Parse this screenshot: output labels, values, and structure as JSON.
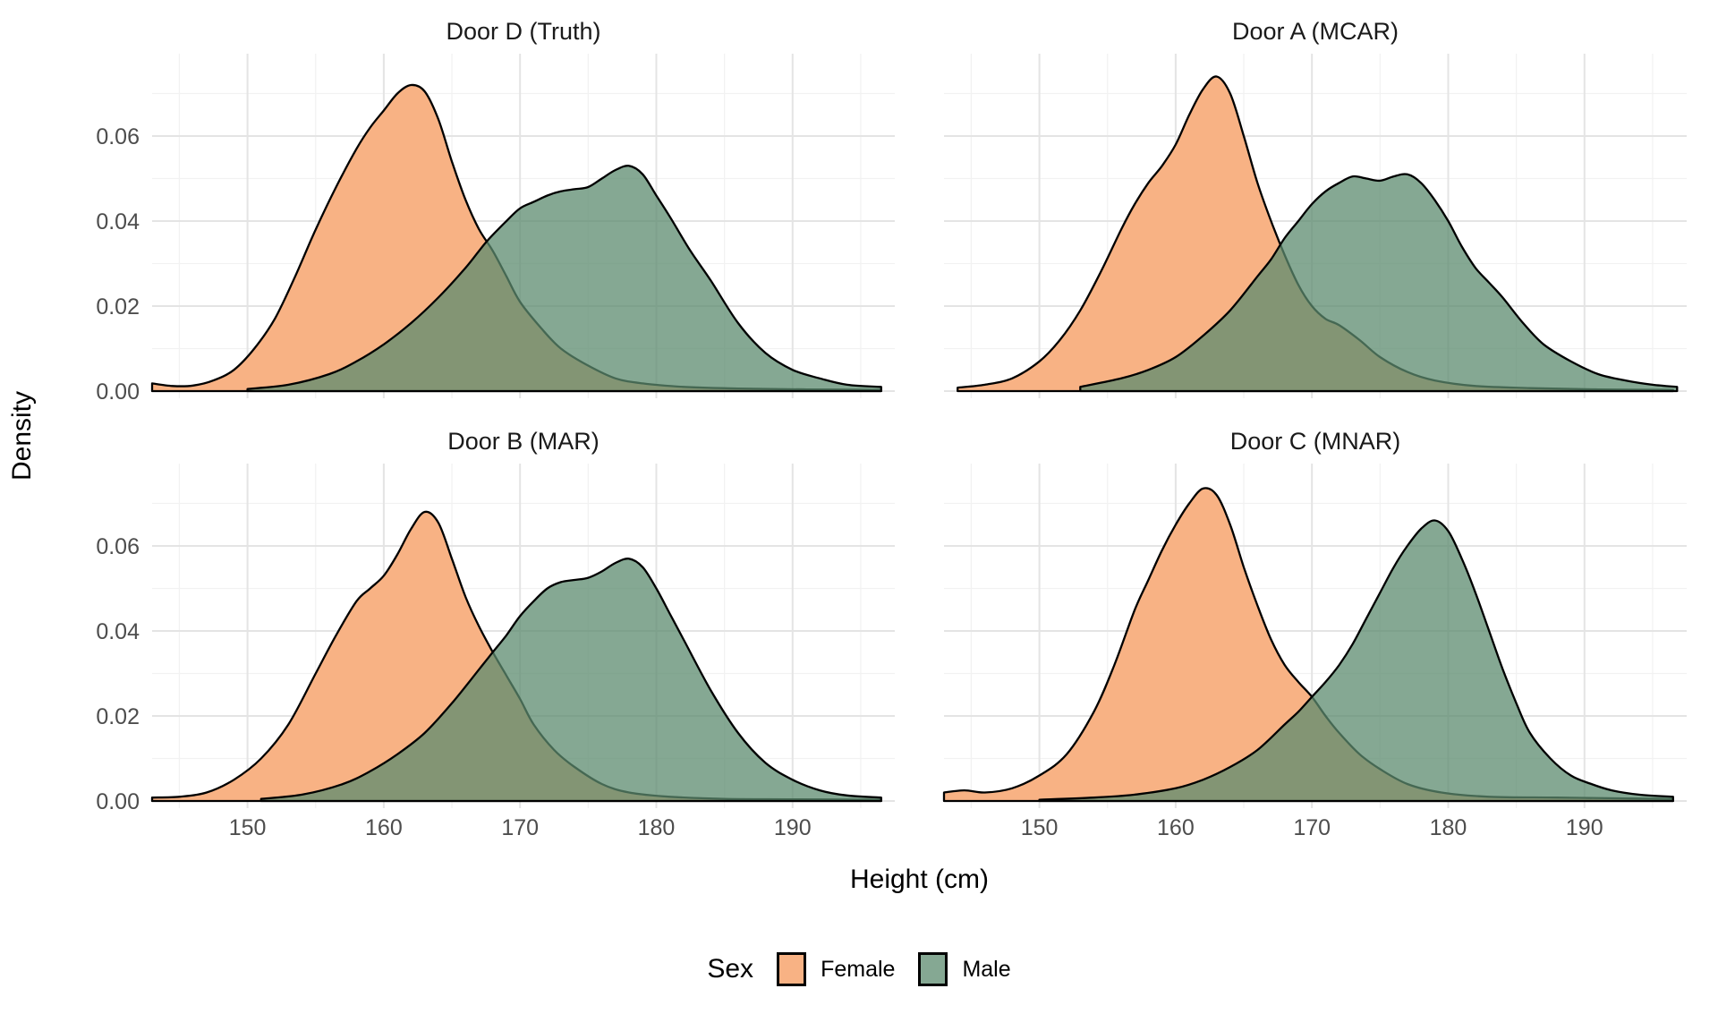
{
  "figure": {
    "y_axis_label": "Density",
    "x_axis_label": "Height (cm)",
    "legend": {
      "title": "Sex",
      "items": [
        {
          "label": "Female",
          "color": "#F8B284"
        },
        {
          "label": "Male",
          "color": "#85A893"
        }
      ]
    },
    "colors": {
      "female_fill": "#F8B284",
      "male_fill": "#5C8B6F",
      "male_fill_opacity": 0.75,
      "male_legend": "#85A893",
      "outline": "#000000",
      "grid_major": "#E4E4E4",
      "grid_minor": "#F2F2F2",
      "tick_label": "#4D4D4D"
    },
    "x_tick_labels": [
      "150",
      "160",
      "170",
      "180",
      "190"
    ],
    "y_tick_labels": [
      "0.00",
      "0.02",
      "0.04",
      "0.06"
    ]
  },
  "chart_data": [
    {
      "type": "area",
      "title": "Door D (Truth)",
      "xlabel": "Height (cm)",
      "ylabel": "Density",
      "xlim": [
        143,
        197.5
      ],
      "ylim": [
        0,
        0.0794
      ],
      "x_ticks": [
        150,
        160,
        170,
        180,
        190
      ],
      "y_ticks": [
        0,
        0.02,
        0.04,
        0.06
      ],
      "legend_position": "bottom",
      "grid": true,
      "series": [
        {
          "name": "Female",
          "x": [
            143,
            144.5,
            146,
            147.5,
            149,
            150.5,
            152,
            153.5,
            155,
            156.5,
            158,
            159,
            160,
            161,
            162,
            163,
            164,
            165,
            166,
            167,
            168,
            169,
            170,
            171.5,
            173,
            175,
            177,
            179,
            182,
            186,
            191,
            196.5
          ],
          "y": [
            0.0018,
            0.0012,
            0.0013,
            0.0025,
            0.005,
            0.01,
            0.017,
            0.027,
            0.038,
            0.048,
            0.057,
            0.062,
            0.066,
            0.07,
            0.072,
            0.0705,
            0.064,
            0.054,
            0.045,
            0.038,
            0.033,
            0.027,
            0.021,
            0.015,
            0.01,
            0.006,
            0.003,
            0.0018,
            0.001,
            0.0006,
            0.0004,
            0.0003
          ]
        },
        {
          "name": "Male",
          "x": [
            150,
            153,
            156,
            158,
            160,
            162,
            164,
            166,
            167.5,
            169,
            170,
            171,
            172,
            173,
            174,
            175,
            176,
            177,
            178,
            179,
            180,
            181,
            182.5,
            184,
            186,
            188,
            190,
            192,
            194,
            196.5
          ],
          "y": [
            0.0005,
            0.0015,
            0.004,
            0.007,
            0.011,
            0.016,
            0.022,
            0.029,
            0.035,
            0.04,
            0.043,
            0.0445,
            0.046,
            0.047,
            0.0475,
            0.048,
            0.05,
            0.052,
            0.053,
            0.051,
            0.046,
            0.041,
            0.033,
            0.026,
            0.016,
            0.009,
            0.005,
            0.003,
            0.0015,
            0.001
          ]
        }
      ]
    },
    {
      "type": "area",
      "title": "Door A (MCAR)",
      "xlabel": "Height (cm)",
      "ylabel": "Density",
      "xlim": [
        143,
        197.5
      ],
      "ylim": [
        0,
        0.0794
      ],
      "x_ticks": [
        150,
        160,
        170,
        180,
        190
      ],
      "y_ticks": [
        0,
        0.02,
        0.04,
        0.06
      ],
      "legend_position": "bottom",
      "grid": true,
      "series": [
        {
          "name": "Female",
          "x": [
            144,
            146,
            148,
            150,
            151.5,
            153,
            154.5,
            156,
            157,
            158,
            159,
            160,
            161,
            162,
            163,
            164,
            165,
            166,
            167,
            168,
            169,
            170,
            171,
            172,
            173.5,
            175,
            177,
            179,
            182,
            186,
            191,
            196.5
          ],
          "y": [
            0.0008,
            0.0015,
            0.003,
            0.007,
            0.012,
            0.019,
            0.028,
            0.038,
            0.044,
            0.049,
            0.053,
            0.058,
            0.065,
            0.071,
            0.074,
            0.07,
            0.06,
            0.049,
            0.04,
            0.032,
            0.025,
            0.02,
            0.017,
            0.0155,
            0.012,
            0.008,
            0.0045,
            0.0025,
            0.0012,
            0.0007,
            0.0004,
            0.0003
          ]
        },
        {
          "name": "Male",
          "x": [
            153,
            156,
            158,
            160,
            162,
            164,
            166,
            167,
            168,
            169,
            170,
            171,
            172,
            173,
            174,
            175,
            176,
            177,
            178,
            179,
            180,
            181,
            182,
            183,
            184,
            185.5,
            187,
            189,
            191,
            193,
            195,
            196.8
          ],
          "y": [
            0.001,
            0.003,
            0.005,
            0.008,
            0.013,
            0.019,
            0.027,
            0.031,
            0.036,
            0.04,
            0.044,
            0.047,
            0.049,
            0.0505,
            0.05,
            0.0495,
            0.0505,
            0.051,
            0.049,
            0.045,
            0.04,
            0.034,
            0.029,
            0.0255,
            0.022,
            0.016,
            0.011,
            0.007,
            0.004,
            0.0025,
            0.0015,
            0.001
          ]
        }
      ]
    },
    {
      "type": "area",
      "title": "Door B (MAR)",
      "xlabel": "Height (cm)",
      "ylabel": "Density",
      "xlim": [
        143,
        197.5
      ],
      "ylim": [
        0,
        0.0794
      ],
      "x_ticks": [
        150,
        160,
        170,
        180,
        190
      ],
      "y_ticks": [
        0,
        0.02,
        0.04,
        0.06
      ],
      "legend_position": "bottom",
      "grid": true,
      "series": [
        {
          "name": "Female",
          "x": [
            143,
            145,
            147,
            149,
            151,
            153,
            155,
            156.5,
            158,
            159,
            160,
            161,
            162,
            163,
            164,
            165,
            166,
            167,
            168,
            169,
            170,
            171,
            172.5,
            174,
            176,
            178,
            181,
            185,
            190,
            196.5
          ],
          "y": [
            0.0008,
            0.001,
            0.002,
            0.005,
            0.01,
            0.018,
            0.03,
            0.039,
            0.047,
            0.05,
            0.053,
            0.058,
            0.064,
            0.068,
            0.0655,
            0.057,
            0.048,
            0.041,
            0.035,
            0.0295,
            0.024,
            0.018,
            0.012,
            0.008,
            0.004,
            0.002,
            0.001,
            0.0005,
            0.0004,
            0.0003
          ]
        },
        {
          "name": "Male",
          "x": [
            151,
            154,
            157,
            159,
            161,
            163,
            165,
            167,
            168,
            169,
            170,
            171,
            172,
            173,
            174,
            175,
            176,
            177,
            178,
            179,
            180,
            181,
            182,
            184,
            186,
            188,
            190,
            192,
            194,
            196.5
          ],
          "y": [
            0.0005,
            0.0015,
            0.004,
            0.007,
            0.011,
            0.016,
            0.023,
            0.031,
            0.035,
            0.039,
            0.0435,
            0.047,
            0.05,
            0.0515,
            0.052,
            0.0525,
            0.054,
            0.056,
            0.057,
            0.055,
            0.05,
            0.044,
            0.038,
            0.026,
            0.016,
            0.009,
            0.005,
            0.0025,
            0.0013,
            0.0008
          ]
        }
      ]
    },
    {
      "type": "area",
      "title": "Door C (MNAR)",
      "xlabel": "Height (cm)",
      "ylabel": "Density",
      "xlim": [
        143,
        197.5
      ],
      "ylim": [
        0,
        0.0794
      ],
      "x_ticks": [
        150,
        160,
        170,
        180,
        190
      ],
      "y_ticks": [
        0,
        0.02,
        0.04,
        0.06
      ],
      "legend_position": "bottom",
      "grid": true,
      "series": [
        {
          "name": "Female",
          "x": [
            143,
            144.5,
            146,
            148,
            150,
            152,
            154,
            155.5,
            157,
            158,
            159,
            160,
            161,
            162,
            163,
            164,
            165,
            166,
            167,
            168,
            169,
            170,
            171,
            172,
            173.5,
            175,
            177,
            179.5,
            183,
            188,
            193,
            196.5
          ],
          "y": [
            0.002,
            0.0025,
            0.002,
            0.003,
            0.006,
            0.011,
            0.021,
            0.032,
            0.045,
            0.052,
            0.059,
            0.065,
            0.07,
            0.0735,
            0.072,
            0.065,
            0.055,
            0.046,
            0.038,
            0.032,
            0.028,
            0.0245,
            0.02,
            0.016,
            0.011,
            0.0075,
            0.004,
            0.002,
            0.001,
            0.0008,
            0.0006,
            0.0005
          ]
        },
        {
          "name": "Male",
          "x": [
            150,
            154,
            157,
            160,
            162,
            164,
            166,
            168,
            169,
            170,
            171,
            172,
            173,
            174,
            175,
            176,
            177,
            178,
            179,
            180,
            181,
            182,
            183,
            184,
            185,
            186,
            187.5,
            189,
            190.5,
            192,
            194,
            196.5
          ],
          "y": [
            0.0003,
            0.0008,
            0.0015,
            0.003,
            0.005,
            0.008,
            0.012,
            0.018,
            0.021,
            0.0245,
            0.028,
            0.032,
            0.037,
            0.043,
            0.049,
            0.055,
            0.06,
            0.064,
            0.066,
            0.0635,
            0.057,
            0.049,
            0.04,
            0.031,
            0.023,
            0.016,
            0.01,
            0.006,
            0.004,
            0.0025,
            0.0015,
            0.001
          ]
        }
      ]
    }
  ]
}
